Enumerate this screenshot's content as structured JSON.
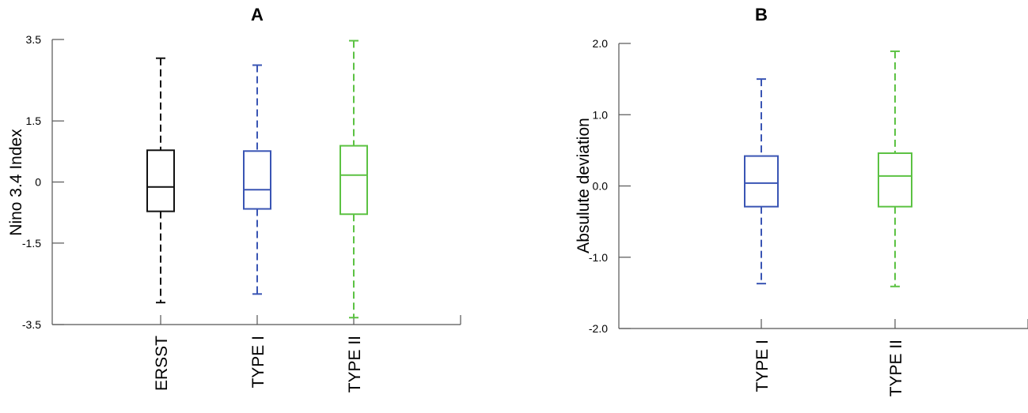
{
  "chart_data": [
    {
      "type": "box",
      "title": "A",
      "xlabel": "",
      "ylabel": "Nino 3.4 Index",
      "ylim": [
        -3.5,
        3.5
      ],
      "yticks": [
        3.5,
        1.5,
        0,
        -1.5,
        -3.5
      ],
      "ytick_labels": [
        "3.5",
        "1.5",
        "0",
        "-1.5",
        "-3.5"
      ],
      "grid": false,
      "categories": [
        "ERSST",
        "TYPE I",
        "TYPE II"
      ],
      "colors": [
        "#111111",
        "#3a55b4",
        "#5cc243"
      ],
      "boxes": [
        {
          "whisker_high": 3.04,
          "q3": 0.78,
          "median": -0.12,
          "q1": -0.72,
          "whisker_low": -2.96
        },
        {
          "whisker_high": 2.87,
          "q3": 0.76,
          "median": -0.19,
          "q1": -0.66,
          "whisker_low": -2.75
        },
        {
          "whisker_high": 3.47,
          "q3": 0.89,
          "median": 0.17,
          "q1": -0.79,
          "whisker_low": -3.33
        }
      ]
    },
    {
      "type": "box",
      "title": "B",
      "xlabel": "",
      "ylabel": "Absulute deviation",
      "ylim": [
        -2.0,
        2.0
      ],
      "yticks": [
        2.0,
        1.0,
        0.0,
        -1.0,
        -2.0
      ],
      "ytick_labels": [
        "2.0",
        "1.0",
        "0.0",
        "-1.0",
        "-2.0"
      ],
      "grid": false,
      "categories": [
        "TYPE I",
        "TYPE II"
      ],
      "colors": [
        "#3a55b4",
        "#5cc243"
      ],
      "boxes": [
        {
          "whisker_high": 1.5,
          "q3": 0.42,
          "median": 0.04,
          "q1": -0.29,
          "whisker_low": -1.37
        },
        {
          "whisker_high": 1.89,
          "q3": 0.46,
          "median": 0.14,
          "q1": -0.29,
          "whisker_low": -1.41
        }
      ]
    }
  ]
}
